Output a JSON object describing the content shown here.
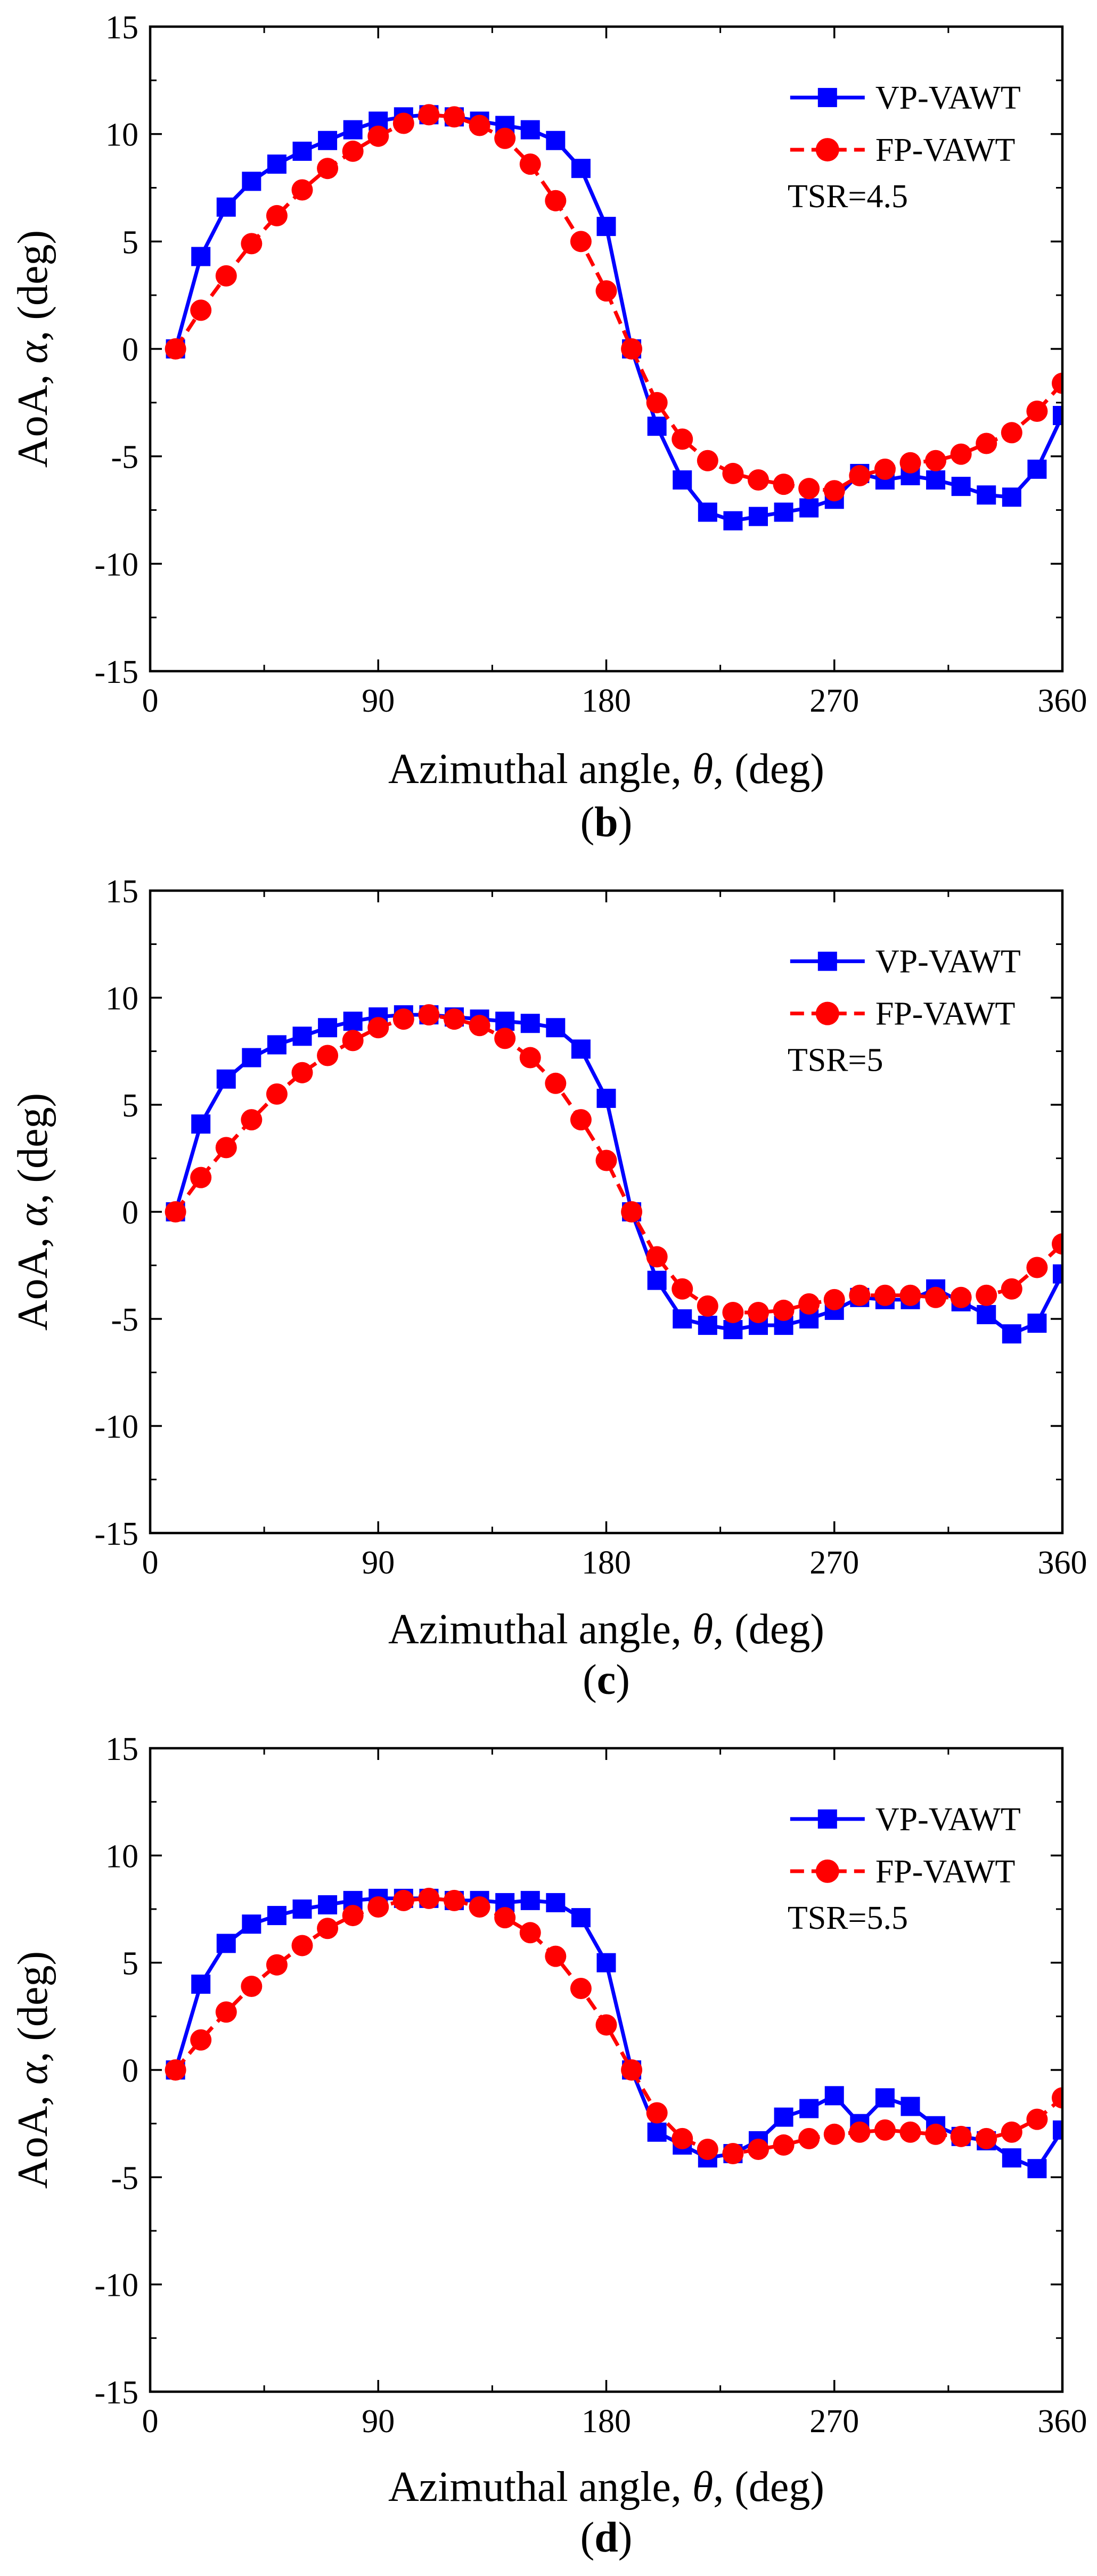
{
  "chart_data": [
    {
      "type": "line",
      "panel_label": "b",
      "xlabel_parts": [
        "Azimuthal angle, ",
        "θ",
        ", (deg)"
      ],
      "ylabel_parts": [
        "AoA, ",
        "α",
        ", (deg)"
      ],
      "xlim": [
        0,
        360
      ],
      "ylim": [
        -15,
        15
      ],
      "xticks": [
        0,
        90,
        180,
        270,
        360
      ],
      "yticks": [
        -15,
        -10,
        -5,
        0,
        5,
        10,
        15
      ],
      "xtick_labels": [
        "0",
        "90",
        "180",
        "270",
        "360"
      ],
      "ytick_labels": [
        "-15",
        "-10",
        "-5",
        "0",
        "5",
        "10",
        "15"
      ],
      "legend": {
        "placement": "top-right",
        "entries": [
          "VP-VAWT",
          "FP-VAWT"
        ],
        "note": "TSR=4.5"
      },
      "series": [
        {
          "name": "VP-VAWT",
          "color": "#0000ff",
          "marker": "square",
          "line": "solid",
          "x": [
            10,
            20,
            30,
            40,
            50,
            60,
            70,
            80,
            90,
            100,
            110,
            120,
            130,
            140,
            150,
            160,
            170,
            180,
            190,
            200,
            210,
            220,
            230,
            240,
            250,
            260,
            270,
            280,
            290,
            300,
            310,
            320,
            330,
            340,
            350,
            360
          ],
          "y": [
            0,
            4.3,
            6.6,
            7.8,
            8.6,
            9.2,
            9.7,
            10.2,
            10.6,
            10.8,
            10.9,
            10.8,
            10.6,
            10.4,
            10.2,
            9.7,
            8.4,
            5.7,
            0,
            -3.6,
            -6.1,
            -7.6,
            -8.0,
            -7.8,
            -7.6,
            -7.4,
            -7.0,
            -5.8,
            -6.1,
            -5.9,
            -6.1,
            -6.4,
            -6.8,
            -6.9,
            -5.6,
            -3.1
          ]
        },
        {
          "name": "FP-VAWT",
          "color": "#ff0000",
          "marker": "circle",
          "line": "dashed",
          "x": [
            10,
            20,
            30,
            40,
            50,
            60,
            70,
            80,
            90,
            100,
            110,
            120,
            130,
            140,
            150,
            160,
            170,
            180,
            190,
            200,
            210,
            220,
            230,
            240,
            250,
            260,
            270,
            280,
            290,
            300,
            310,
            320,
            330,
            340,
            350,
            360
          ],
          "y": [
            0,
            1.8,
            3.4,
            4.9,
            6.2,
            7.4,
            8.4,
            9.2,
            9.9,
            10.5,
            10.9,
            10.8,
            10.4,
            9.8,
            8.6,
            6.9,
            5.0,
            2.7,
            0,
            -2.5,
            -4.2,
            -5.2,
            -5.8,
            -6.1,
            -6.3,
            -6.5,
            -6.6,
            -5.9,
            -5.6,
            -5.3,
            -5.2,
            -4.9,
            -4.4,
            -3.9,
            -2.9,
            -1.6
          ]
        }
      ]
    },
    {
      "type": "line",
      "panel_label": "c",
      "xlabel_parts": [
        "Azimuthal angle, ",
        "θ",
        ", (deg)"
      ],
      "ylabel_parts": [
        "AoA, ",
        "α",
        ", (deg)"
      ],
      "xlim": [
        0,
        360
      ],
      "ylim": [
        -15,
        15
      ],
      "xticks": [
        0,
        90,
        180,
        270,
        360
      ],
      "yticks": [
        -15,
        -10,
        -5,
        0,
        5,
        10,
        15
      ],
      "xtick_labels": [
        "0",
        "90",
        "180",
        "270",
        "360"
      ],
      "ytick_labels": [
        "-15",
        "-10",
        "-5",
        "0",
        "5",
        "10",
        "15"
      ],
      "legend": {
        "placement": "top-right",
        "entries": [
          "VP-VAWT",
          "FP-VAWT"
        ],
        "note": "TSR=5"
      },
      "series": [
        {
          "name": "VP-VAWT",
          "color": "#0000ff",
          "marker": "square",
          "line": "solid",
          "x": [
            10,
            20,
            30,
            40,
            50,
            60,
            70,
            80,
            90,
            100,
            110,
            120,
            130,
            140,
            150,
            160,
            170,
            180,
            190,
            200,
            210,
            220,
            230,
            240,
            250,
            260,
            270,
            280,
            290,
            300,
            310,
            320,
            330,
            340,
            350,
            360
          ],
          "y": [
            0,
            4.1,
            6.2,
            7.2,
            7.8,
            8.2,
            8.6,
            8.9,
            9.1,
            9.2,
            9.2,
            9.1,
            9.0,
            8.9,
            8.8,
            8.6,
            7.6,
            5.3,
            0,
            -3.2,
            -5.0,
            -5.3,
            -5.5,
            -5.3,
            -5.3,
            -5.0,
            -4.6,
            -4.0,
            -4.1,
            -4.1,
            -3.6,
            -4.2,
            -4.8,
            -5.7,
            -5.2,
            -2.9
          ]
        },
        {
          "name": "FP-VAWT",
          "color": "#ff0000",
          "marker": "circle",
          "line": "dashed",
          "x": [
            10,
            20,
            30,
            40,
            50,
            60,
            70,
            80,
            90,
            100,
            110,
            120,
            130,
            140,
            150,
            160,
            170,
            180,
            190,
            200,
            210,
            220,
            230,
            240,
            250,
            260,
            270,
            280,
            290,
            300,
            310,
            320,
            330,
            340,
            350,
            360
          ],
          "y": [
            0,
            1.6,
            3.0,
            4.3,
            5.5,
            6.5,
            7.3,
            8.0,
            8.6,
            9.0,
            9.2,
            9.0,
            8.7,
            8.1,
            7.2,
            6.0,
            4.3,
            2.4,
            0,
            -2.1,
            -3.6,
            -4.4,
            -4.7,
            -4.7,
            -4.6,
            -4.3,
            -4.1,
            -3.9,
            -3.9,
            -3.9,
            -4.0,
            -4.0,
            -3.9,
            -3.6,
            -2.6,
            -1.5
          ]
        }
      ]
    },
    {
      "type": "line",
      "panel_label": "d",
      "xlabel_parts": [
        "Azimuthal angle, ",
        "θ",
        ", (deg)"
      ],
      "ylabel_parts": [
        "AoA, ",
        "α",
        ", (deg)"
      ],
      "xlim": [
        0,
        360
      ],
      "ylim": [
        -15,
        15
      ],
      "xticks": [
        0,
        90,
        180,
        270,
        360
      ],
      "yticks": [
        -15,
        -10,
        -5,
        0,
        5,
        10,
        15
      ],
      "xtick_labels": [
        "0",
        "90",
        "180",
        "270",
        "360"
      ],
      "ytick_labels": [
        "-15",
        "-10",
        "-5",
        "0",
        "5",
        "10",
        "15"
      ],
      "legend": {
        "placement": "top-right",
        "entries": [
          "VP-VAWT",
          "FP-VAWT"
        ],
        "note": "TSR=5.5"
      },
      "series": [
        {
          "name": "VP-VAWT",
          "color": "#0000ff",
          "marker": "square",
          "line": "solid",
          "x": [
            10,
            20,
            30,
            40,
            50,
            60,
            70,
            80,
            90,
            100,
            110,
            120,
            130,
            140,
            150,
            160,
            170,
            180,
            190,
            200,
            210,
            220,
            230,
            240,
            250,
            260,
            270,
            280,
            290,
            300,
            310,
            320,
            330,
            340,
            350,
            360
          ],
          "y": [
            0,
            4.0,
            5.9,
            6.8,
            7.2,
            7.5,
            7.7,
            7.9,
            8.0,
            8.0,
            8.0,
            7.9,
            7.9,
            7.8,
            7.9,
            7.8,
            7.1,
            5.0,
            0,
            -2.9,
            -3.5,
            -4.1,
            -3.9,
            -3.3,
            -2.2,
            -1.8,
            -1.2,
            -2.5,
            -1.3,
            -1.7,
            -2.6,
            -3.1,
            -3.3,
            -4.1,
            -4.6,
            -2.8
          ]
        },
        {
          "name": "FP-VAWT",
          "color": "#ff0000",
          "marker": "circle",
          "line": "dashed",
          "x": [
            10,
            20,
            30,
            40,
            50,
            60,
            70,
            80,
            90,
            100,
            110,
            120,
            130,
            140,
            150,
            160,
            170,
            180,
            190,
            200,
            210,
            220,
            230,
            240,
            250,
            260,
            270,
            280,
            290,
            300,
            310,
            320,
            330,
            340,
            350,
            360
          ],
          "y": [
            0,
            1.4,
            2.7,
            3.9,
            4.9,
            5.8,
            6.6,
            7.2,
            7.6,
            7.9,
            8.0,
            7.9,
            7.6,
            7.1,
            6.4,
            5.3,
            3.8,
            2.1,
            0,
            -2.0,
            -3.2,
            -3.7,
            -3.9,
            -3.7,
            -3.5,
            -3.2,
            -3.0,
            -2.9,
            -2.8,
            -2.9,
            -3.0,
            -3.1,
            -3.2,
            -2.9,
            -2.3,
            -1.3
          ]
        }
      ]
    }
  ]
}
